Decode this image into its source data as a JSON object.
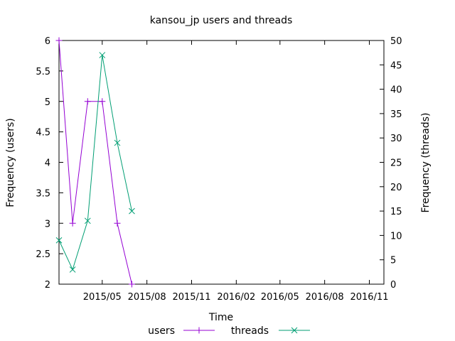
{
  "chart_data": {
    "type": "line",
    "title": "kansou_jp users and threads",
    "xlabel": "Time",
    "ylabel_left": "Frequency (users)",
    "ylabel_right": "Frequency (threads)",
    "xlim": [
      "2015-02-01",
      "2016-12-01"
    ],
    "ylim_left": [
      2,
      6
    ],
    "ylim_right": [
      0,
      50
    ],
    "x_ticks": [
      "2015/05",
      "2015/08",
      "2015/11",
      "2016/02",
      "2016/05",
      "2016/08",
      "2016/11"
    ],
    "y_ticks_left": [
      "2",
      "2.5",
      "3",
      "3.5",
      "4",
      "4.5",
      "5",
      "5.5",
      "6"
    ],
    "y_ticks_right": [
      "0",
      "5",
      "10",
      "15",
      "20",
      "25",
      "30",
      "35",
      "40",
      "45",
      "50"
    ],
    "grid": false,
    "legend_position": "bottom",
    "series": [
      {
        "name": "users",
        "axis": "left",
        "color": "#9400d3",
        "marker": "plus",
        "x": [
          "2015-02-01",
          "2015-03-01",
          "2015-04-01",
          "2015-05-01",
          "2015-06-01",
          "2015-07-01"
        ],
        "values": [
          6,
          3,
          5,
          5,
          3,
          2
        ]
      },
      {
        "name": "threads",
        "axis": "right",
        "color": "#009e73",
        "marker": "cross",
        "x": [
          "2015-02-01",
          "2015-03-01",
          "2015-04-01",
          "2015-05-01",
          "2015-06-01",
          "2015-07-01"
        ],
        "values": [
          9,
          3,
          13,
          47,
          29,
          15
        ]
      }
    ]
  }
}
